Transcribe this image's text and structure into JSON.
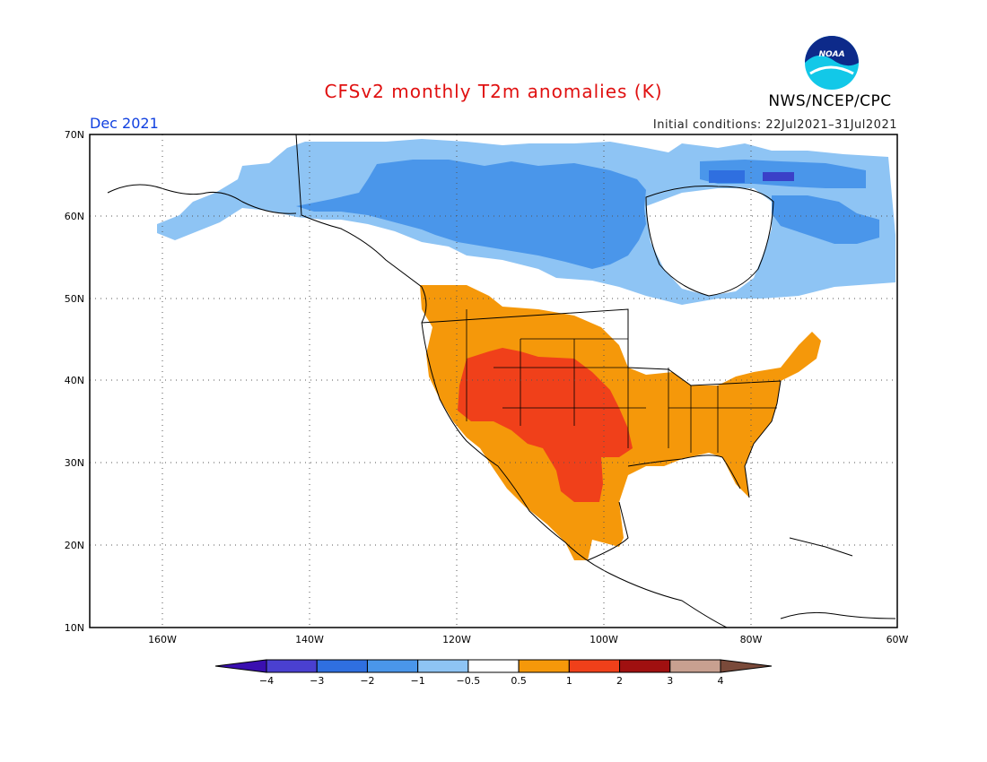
{
  "title": "CFSv2 monthly T2m anomalies (K)",
  "month": "Dec 2021",
  "initial_conditions": "Initial conditions: 22Jul2021–31Jul2021",
  "agency": "NWS/NCEP/CPC",
  "logo_text": "NOAA",
  "lat_labels": [
    "70N",
    "60N",
    "50N",
    "40N",
    "30N",
    "20N",
    "10N"
  ],
  "lon_labels": [
    "160W",
    "140W",
    "120W",
    "100W",
    "80W",
    "60W"
  ],
  "colorbar": {
    "ticks": [
      "−4",
      "−3",
      "−2",
      "−1",
      "−0.5",
      "0.5",
      "1",
      "2",
      "3",
      "4"
    ],
    "colors": [
      "#3a0fb0",
      "#4a40d0",
      "#2f6fe0",
      "#4a96ea",
      "#8ec4f4",
      "#ffffff",
      "#f5980a",
      "#f0401a",
      "#a01010",
      "#c8a090",
      "#7a4a3a"
    ]
  },
  "colors": {
    "title": "#e01010",
    "month": "#1040e0",
    "cold_deep": "#2f6fe0",
    "cold": "#4a96ea",
    "cool": "#8ec4f4",
    "warm": "#f5980a",
    "hot": "#f0401a",
    "very_hot": "#a01010"
  }
}
